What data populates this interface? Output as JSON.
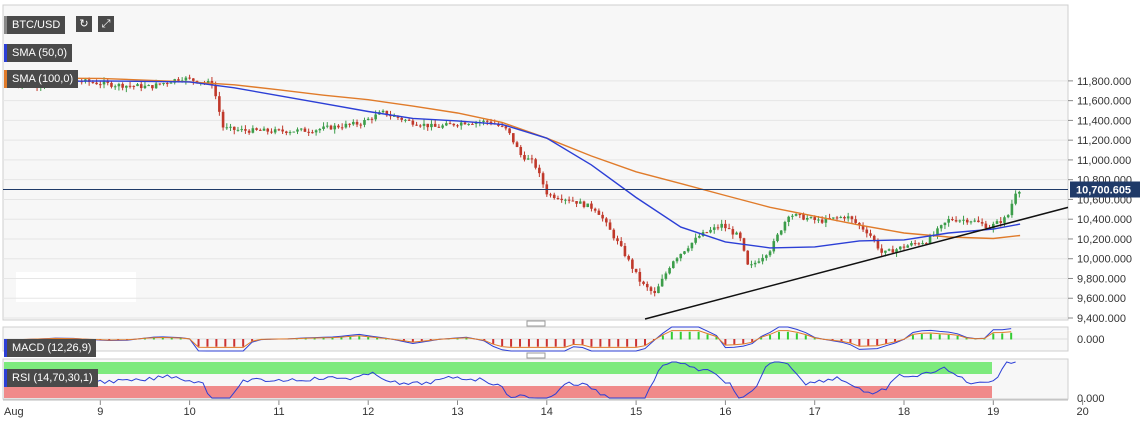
{
  "toolbar": {
    "symbol": "BTC/USD",
    "refresh_icon": "refresh-icon",
    "expand_icon": "expand-icon"
  },
  "indicators": {
    "sma50": {
      "label": "SMA (50,0)",
      "color": "#2c3fd6"
    },
    "sma100": {
      "label": "SMA (100,0)",
      "color": "#e07b2a"
    },
    "macd": {
      "label": "MACD (12,26,9)"
    },
    "rsi": {
      "label": "RSI (14,70,30,1)"
    }
  },
  "current_price": {
    "value": 10700.605,
    "label": "10,700.605"
  },
  "macd_axis_label": "0.000",
  "rsi_axis_label": "0.000",
  "chart_data": {
    "type": "candlestick",
    "ylim": [
      9350,
      11950
    ],
    "y_ticks": [
      "9,400.000",
      "9,600.000",
      "9,800.000",
      "10,000.000",
      "10,200.000",
      "10,400.000",
      "10,600.000",
      "10,800.000",
      "11,000.000",
      "11,200.000",
      "11,400.000",
      "11,600.000",
      "11,800.000"
    ],
    "x_ticks": [
      "Aug",
      "9",
      "10",
      "11",
      "12",
      "13",
      "14",
      "15",
      "16",
      "17",
      "18",
      "19",
      "20"
    ],
    "colors": {
      "up": "#3c9d4a",
      "down": "#c0392b"
    },
    "price_path": [
      [
        8.0,
        11780
      ],
      [
        8.4,
        11760
      ],
      [
        8.8,
        11800
      ],
      [
        9.2,
        11760
      ],
      [
        9.6,
        11740
      ],
      [
        9.95,
        11830
      ],
      [
        10.3,
        11770
      ],
      [
        10.42,
        11320
      ],
      [
        10.6,
        11300
      ],
      [
        11.0,
        11290
      ],
      [
        11.4,
        11300
      ],
      [
        11.7,
        11340
      ],
      [
        11.95,
        11370
      ],
      [
        12.2,
        11480
      ],
      [
        12.5,
        11390
      ],
      [
        12.8,
        11330
      ],
      [
        13.1,
        11380
      ],
      [
        13.4,
        11390
      ],
      [
        13.6,
        11300
      ],
      [
        13.75,
        11050
      ],
      [
        13.9,
        10970
      ],
      [
        14.05,
        10650
      ],
      [
        14.3,
        10600
      ],
      [
        14.6,
        10500
      ],
      [
        14.9,
        10070
      ],
      [
        15.1,
        9750
      ],
      [
        15.25,
        9640
      ],
      [
        15.45,
        9980
      ],
      [
        15.75,
        10230
      ],
      [
        16.0,
        10340
      ],
      [
        16.2,
        10220
      ],
      [
        16.3,
        9900
      ],
      [
        16.55,
        10100
      ],
      [
        16.75,
        10450
      ],
      [
        17.1,
        10380
      ],
      [
        17.4,
        10430
      ],
      [
        17.65,
        10260
      ],
      [
        17.8,
        10050
      ],
      [
        18.1,
        10140
      ],
      [
        18.3,
        10180
      ],
      [
        18.55,
        10400
      ],
      [
        18.8,
        10390
      ],
      [
        19.0,
        10320
      ],
      [
        19.2,
        10420
      ],
      [
        19.3,
        10700
      ]
    ],
    "sma50_path": [
      [
        8.0,
        11790
      ],
      [
        9.0,
        11800
      ],
      [
        10.0,
        11790
      ],
      [
        10.5,
        11730
      ],
      [
        11.0,
        11650
      ],
      [
        11.5,
        11570
      ],
      [
        12.0,
        11490
      ],
      [
        12.5,
        11420
      ],
      [
        13.0,
        11395
      ],
      [
        13.5,
        11360
      ],
      [
        14.0,
        11220
      ],
      [
        14.5,
        10950
      ],
      [
        15.0,
        10620
      ],
      [
        15.5,
        10320
      ],
      [
        16.0,
        10170
      ],
      [
        16.5,
        10110
      ],
      [
        17.0,
        10120
      ],
      [
        17.5,
        10180
      ],
      [
        18.0,
        10190
      ],
      [
        18.5,
        10260
      ],
      [
        19.0,
        10300
      ],
      [
        19.3,
        10350
      ]
    ],
    "sma100_path": [
      [
        8.0,
        11830
      ],
      [
        9.0,
        11825
      ],
      [
        10.0,
        11790
      ],
      [
        10.5,
        11760
      ],
      [
        11.0,
        11710
      ],
      [
        11.5,
        11655
      ],
      [
        12.0,
        11610
      ],
      [
        12.5,
        11545
      ],
      [
        13.0,
        11475
      ],
      [
        13.5,
        11380
      ],
      [
        14.0,
        11220
      ],
      [
        14.5,
        11040
      ],
      [
        15.0,
        10880
      ],
      [
        15.5,
        10760
      ],
      [
        16.0,
        10640
      ],
      [
        16.5,
        10520
      ],
      [
        17.0,
        10430
      ],
      [
        17.5,
        10340
      ],
      [
        18.0,
        10260
      ],
      [
        18.5,
        10220
      ],
      [
        19.0,
        10205
      ],
      [
        19.3,
        10235
      ]
    ],
    "trendline": [
      [
        15.1,
        9390
      ],
      [
        20.2,
        10520
      ]
    ]
  }
}
